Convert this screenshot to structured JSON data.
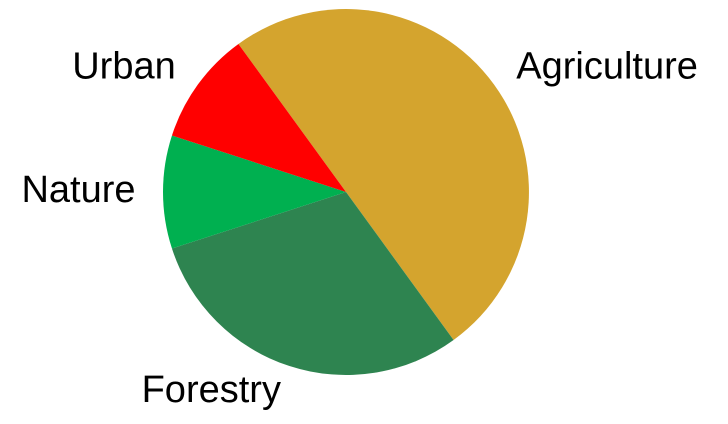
{
  "chart_data": {
    "type": "pie",
    "categories": [
      "Agriculture",
      "Forestry",
      "Nature",
      "Urban"
    ],
    "values": [
      50,
      30,
      10,
      10
    ],
    "colors": [
      "#d4a42e",
      "#2e8450",
      "#00b050",
      "#ff0000"
    ]
  }
}
